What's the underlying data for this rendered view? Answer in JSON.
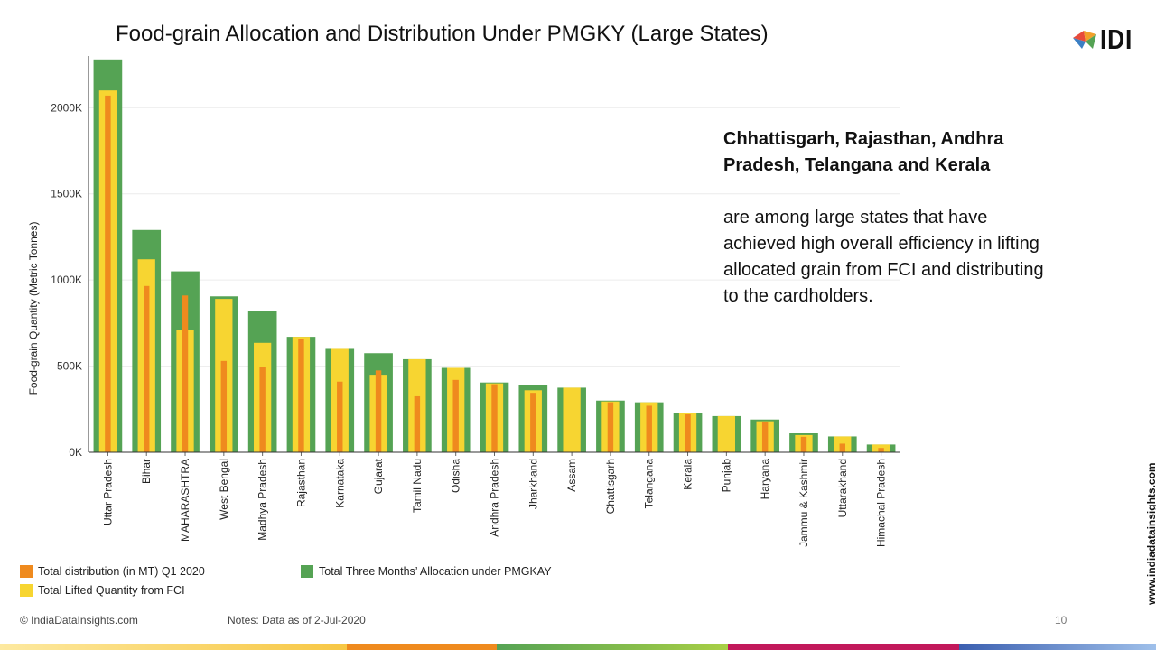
{
  "title": "Food-grain Allocation and Distribution Under PMGKY (Large States)",
  "logo_text": "IDI",
  "side_text": {
    "bold": "Chhattisgarh, Rajasthan, Andhra Pradesh, Telangana and Kerala",
    "body": "are among large states that have achieved high overall efficiency in lifting allocated grain from FCI and distributing to the cardholders."
  },
  "footer": {
    "copyright": "© IndiaDataInsights.com",
    "notes": "Notes: Data as of 2-Jul-2020",
    "page_number": "10",
    "side_url": "www.indiadatainsights.com"
  },
  "colors": {
    "allocation": "#55a354",
    "lifted": "#f7d531",
    "distribution": "#ef8a1e",
    "grid": "#ececec",
    "axis": "#333333"
  },
  "chart_data": {
    "type": "bar",
    "title": "Food-grain Allocation and Distribution Under PMGKY (Large States)",
    "ylabel": "Food-grain Quantity (Metric Tonnes)",
    "ylim": [
      0,
      2300000
    ],
    "yticks": [
      {
        "value": 0,
        "label": "0K"
      },
      {
        "value": 500000,
        "label": "500K"
      },
      {
        "value": 1000000,
        "label": "1000K"
      },
      {
        "value": 1500000,
        "label": "1500K"
      },
      {
        "value": 2000000,
        "label": "2000K"
      }
    ],
    "grid": true,
    "legend_position": "bottom-left",
    "categories": [
      "Uttar Pradesh",
      "Bihar",
      "MAHARASHTRA",
      "West Bengal",
      "Madhya Pradesh",
      "Rajasthan",
      "Karnataka",
      "Gujarat",
      "Tamil Nadu",
      "Odisha",
      "Andhra Pradesh",
      "Jharkhand",
      "Assam",
      "Chattisgarh",
      "Telangana",
      "Kerala",
      "Punjab",
      "Haryana",
      "Jammu & Kashmir",
      "Uttarakhand",
      "Himachal Pradesh"
    ],
    "series": [
      {
        "name": "Total Three Months’ Allocation under PMGKAY",
        "color": "#55a354",
        "values": [
          2280000,
          1290000,
          1050000,
          905000,
          820000,
          670000,
          600000,
          575000,
          540000,
          490000,
          405000,
          390000,
          375000,
          300000,
          290000,
          230000,
          210000,
          190000,
          110000,
          92000,
          45000
        ]
      },
      {
        "name": "Total Lifted Quantity from FCI",
        "color": "#f7d531",
        "values": [
          2100000,
          1120000,
          710000,
          890000,
          635000,
          670000,
          600000,
          450000,
          540000,
          490000,
          400000,
          360000,
          375000,
          295000,
          290000,
          230000,
          210000,
          180000,
          100000,
          92000,
          45000
        ]
      },
      {
        "name": "Total distribution (in MT) Q1 2020",
        "color": "#ef8a1e",
        "values": [
          2070000,
          965000,
          910000,
          530000,
          495000,
          660000,
          410000,
          475000,
          325000,
          420000,
          395000,
          345000,
          0,
          290000,
          270000,
          220000,
          5000,
          175000,
          90000,
          50000,
          25000
        ]
      }
    ]
  },
  "legend": {
    "distribution": "Total distribution (in MT) Q1 2020",
    "allocation": "Total Three Months’ Allocation under PMGKAY",
    "lifted": "Total Lifted Quantity from FCI"
  }
}
